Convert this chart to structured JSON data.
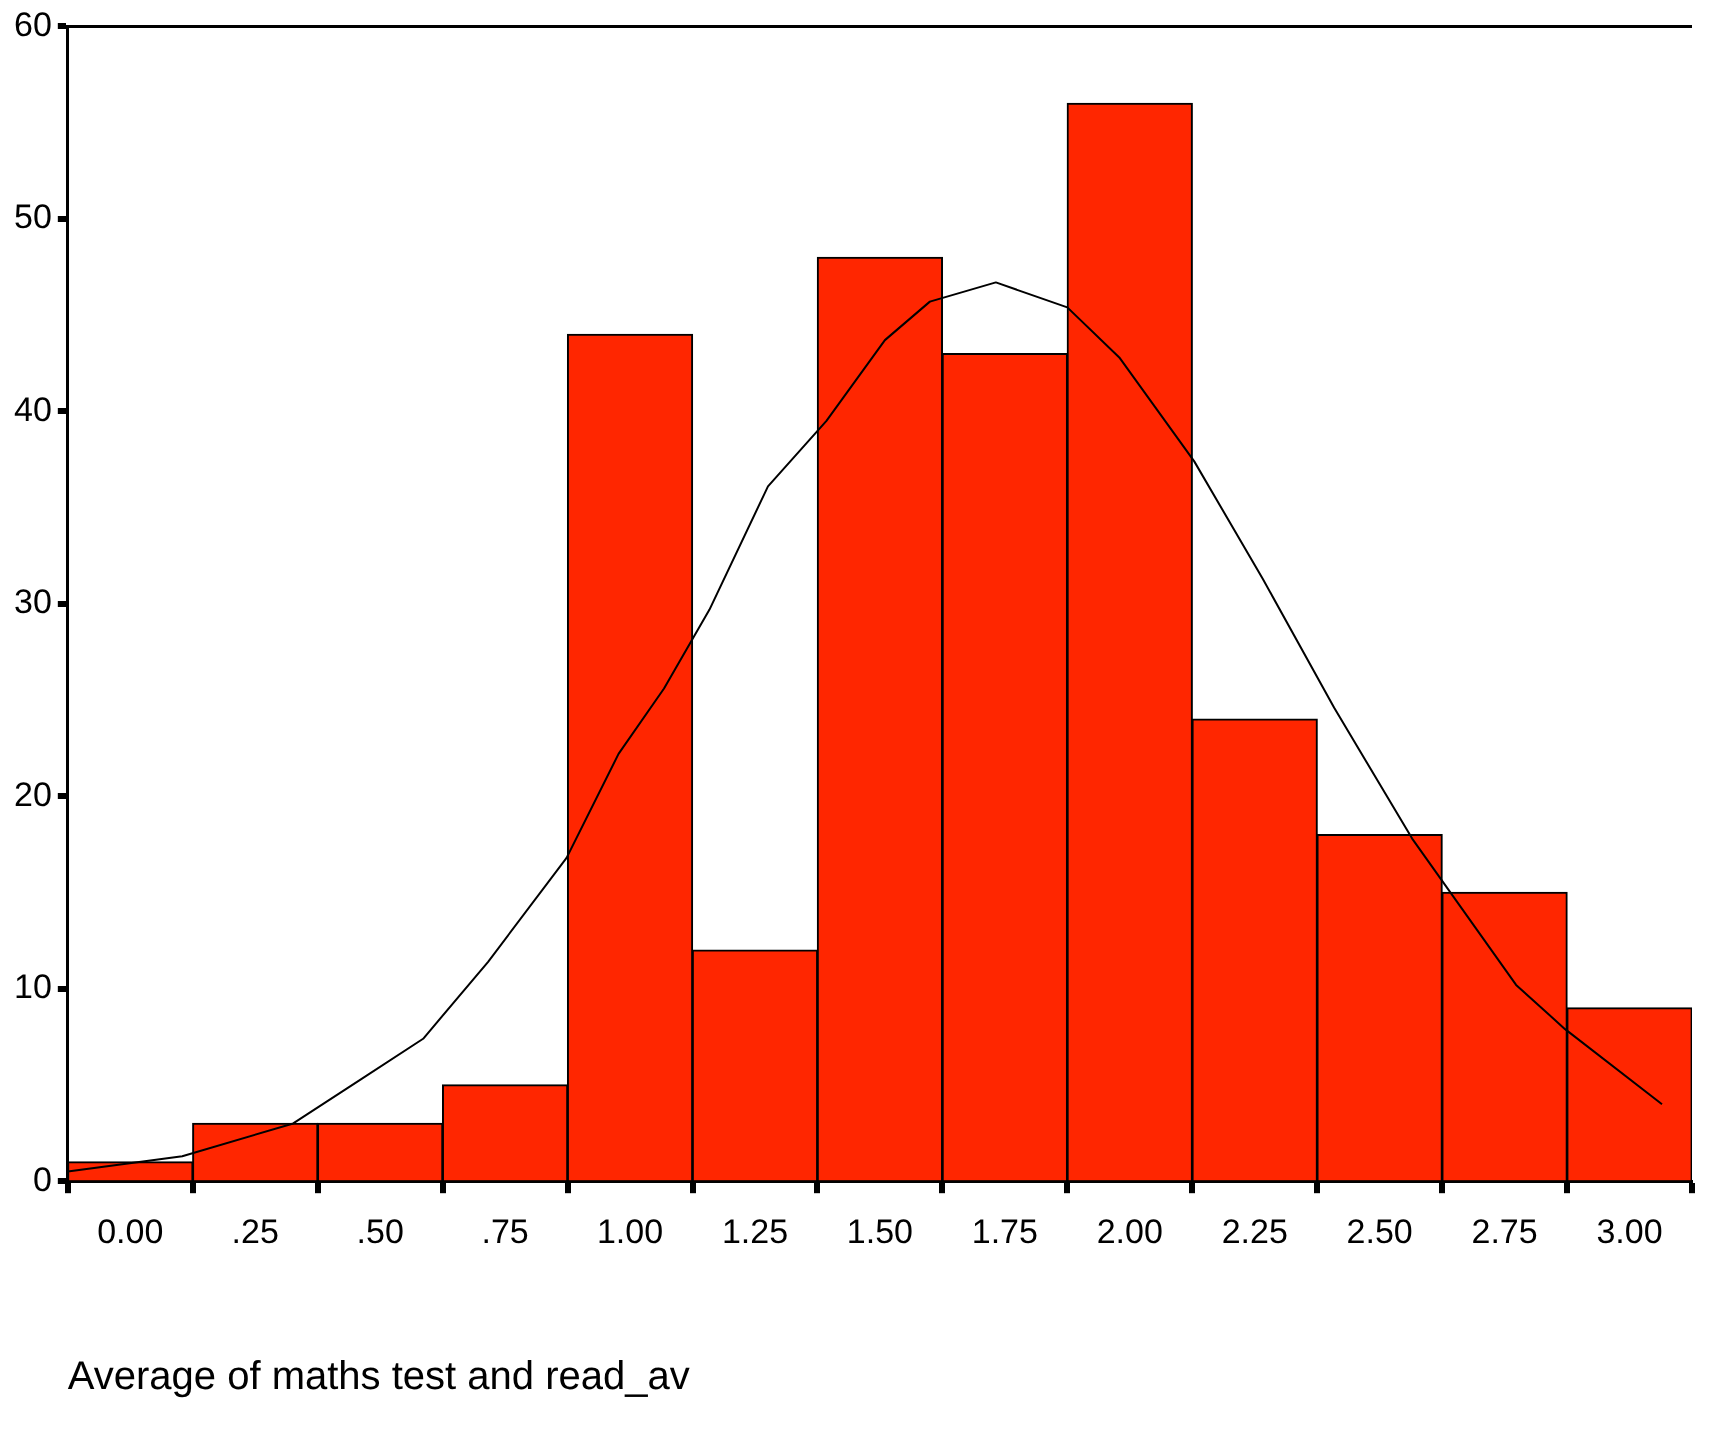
{
  "chart_data": {
    "type": "histogram",
    "xlabel": "Average of maths test and read_av",
    "bins": [
      -0.125,
      0.125,
      0.375,
      0.625,
      0.875,
      1.125,
      1.375,
      1.625,
      1.875,
      2.125,
      2.375,
      2.625,
      2.875,
      3.125
    ],
    "values": [
      1,
      3,
      3,
      5,
      44,
      12,
      48,
      43,
      56,
      24,
      18,
      15,
      9
    ],
    "color": "#ff2600",
    "series": [
      {
        "type": "line",
        "color": "#000000",
        "x": [
          -0.125,
          0.104,
          0.326,
          0.456,
          0.586,
          0.716,
          0.873,
          0.977,
          1.068,
          1.159,
          1.276,
          1.393,
          1.51,
          1.6,
          1.732,
          1.875,
          1.979,
          2.129,
          2.266,
          2.409,
          2.565,
          2.773,
          2.871,
          3.065
        ],
        "values": [
          0.5,
          1.3,
          3.0,
          5.2,
          7.4,
          11.4,
          16.8,
          22.2,
          25.6,
          29.7,
          36.1,
          39.5,
          43.7,
          45.7,
          46.7,
          45.4,
          42.8,
          37.4,
          31.3,
          24.6,
          17.8,
          10.2,
          7.9,
          4.0
        ]
      }
    ],
    "xlim": [
      -0.125,
      3.125
    ],
    "xticks": [
      {
        "value": 0,
        "label": "0.00"
      },
      {
        "value": 0.25,
        "label": ".25"
      },
      {
        "value": 0.5,
        "label": ".50"
      },
      {
        "value": 0.75,
        "label": ".75"
      },
      {
        "value": 1,
        "label": "1.00"
      },
      1.25,
      {
        "value": 1.5,
        "label": "1.50"
      },
      1.75,
      {
        "value": 2,
        "label": "2.00"
      },
      2.25,
      {
        "value": 2.5,
        "label": "2.50"
      },
      2.75,
      {
        "value": 3,
        "label": "3.00"
      }
    ],
    "ylim": [
      0,
      60
    ],
    "yticks": [
      0,
      10,
      20,
      30,
      40,
      50,
      60
    ],
    "grid": false,
    "legend": false,
    "marker": "none",
    "line_style": "solid"
  }
}
